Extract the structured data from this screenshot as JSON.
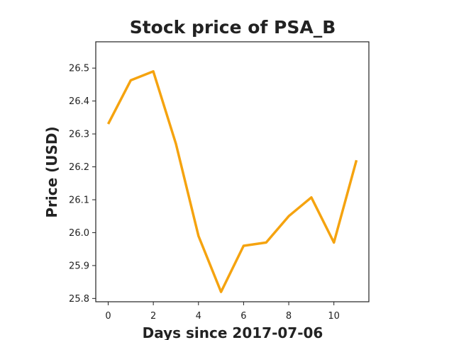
{
  "chart_data": {
    "type": "line",
    "title": "Stock price of PSA_B",
    "xlabel": "Days since 2017-07-06",
    "ylabel": "Price (USD)",
    "xlim": [
      -0.55,
      11.55
    ],
    "ylim": [
      25.79,
      26.58
    ],
    "xticks": [
      0,
      2,
      4,
      6,
      8,
      10
    ],
    "yticks": [
      25.8,
      25.9,
      26.0,
      26.1,
      26.2,
      26.3,
      26.4,
      26.5
    ],
    "grid": false,
    "series": [
      {
        "color": "#f5a30f",
        "x": [
          0,
          1,
          2,
          3,
          4,
          5,
          6,
          7,
          8,
          9,
          10,
          11
        ],
        "y": [
          26.33,
          26.463,
          26.49,
          26.27,
          25.99,
          25.82,
          25.96,
          25.97,
          26.05,
          26.107,
          25.97,
          26.22
        ]
      }
    ]
  }
}
